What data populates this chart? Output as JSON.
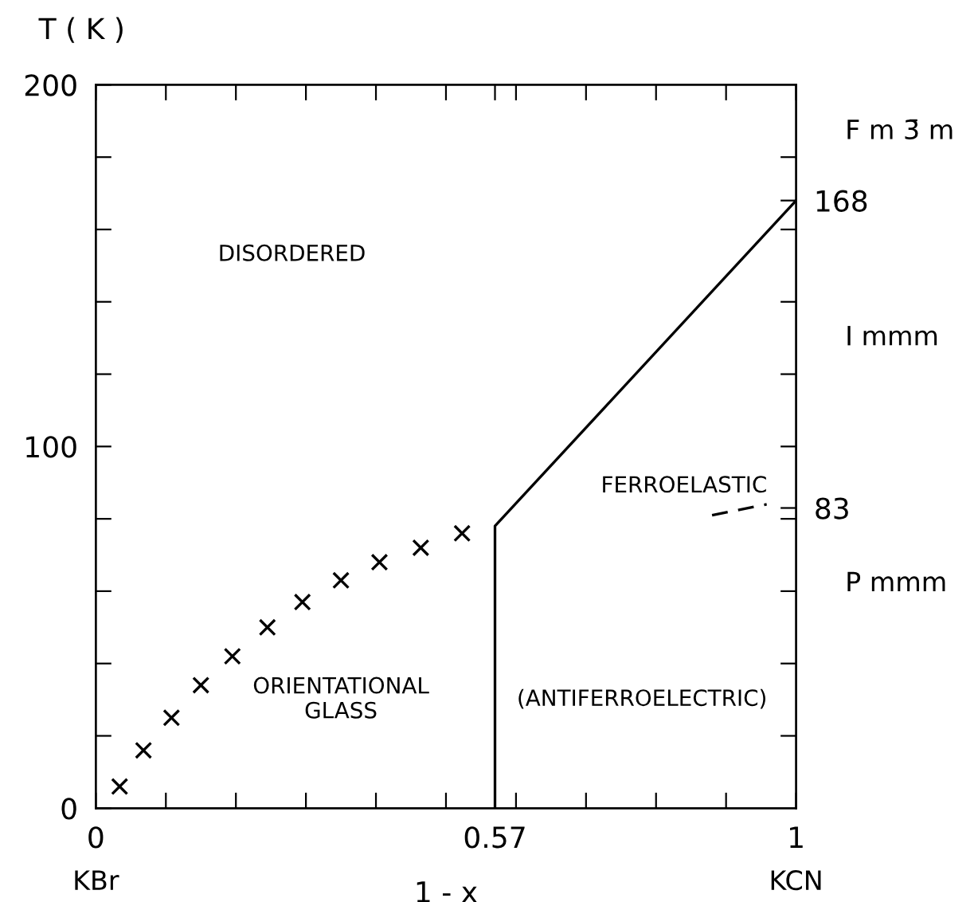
{
  "chart_data": {
    "type": "scatter",
    "xlabel": "1 - x",
    "ylabel": "T ( K )",
    "xlim": [
      0,
      1
    ],
    "ylim": [
      0,
      200
    ],
    "xticks": [
      0,
      {
        "value": 0.1,
        "label": null
      },
      {
        "value": 0.2,
        "label": null
      },
      {
        "value": 0.3,
        "label": null
      },
      {
        "value": 0.4,
        "label": null
      },
      {
        "value": 0.5,
        "label": null
      },
      0.57,
      {
        "value": 0.6,
        "label": null
      },
      {
        "value": 0.7,
        "label": null
      },
      {
        "value": 0.8,
        "label": null
      },
      {
        "value": 0.9,
        "label": null
      },
      1
    ],
    "yticks": [
      0,
      {
        "value": 20,
        "label": null
      },
      {
        "value": 40,
        "label": null
      },
      {
        "value": 60,
        "label": null
      },
      {
        "value": 80,
        "label": null
      },
      100,
      {
        "value": 120,
        "label": null
      },
      {
        "value": 140,
        "label": null
      },
      {
        "value": 160,
        "label": null
      },
      {
        "value": 180,
        "label": null
      },
      200
    ],
    "y2lim": [
      0,
      200
    ],
    "y2ticks": [
      {
        "value": 20,
        "label": null
      },
      {
        "value": 40,
        "label": null
      },
      {
        "value": 60,
        "label": null
      },
      {
        "value": 80,
        "label": null
      },
      83,
      {
        "value": 100,
        "label": null
      },
      {
        "value": 120,
        "label": null
      },
      {
        "value": 140,
        "label": null
      },
      {
        "value": 160,
        "label": null
      },
      168,
      {
        "value": 180,
        "label": null
      }
    ],
    "grid": false,
    "legend": false,
    "series": [
      {
        "color": "#000000",
        "marker": "cross",
        "x": [
          0.034,
          0.068,
          0.108,
          0.15,
          0.195,
          0.245,
          0.295,
          0.35,
          0.405,
          0.464,
          0.523
        ],
        "values": [
          6,
          16,
          25,
          34,
          42,
          50,
          57,
          63,
          68,
          72,
          76
        ]
      },
      {
        "type": "line",
        "color": "#000000",
        "marker": "none",
        "line_style": "solid",
        "x": [
          0.57,
          0.57,
          1
        ],
        "values": [
          0,
          78,
          168
        ]
      },
      {
        "type": "line",
        "color": "#000000",
        "marker": "none",
        "line_style": "dashed",
        "x": [
          0.88,
          0.958
        ],
        "values": [
          81,
          84
        ]
      }
    ],
    "annotations": [
      "DISORDERED",
      "FERROELASTIC",
      "ORIENTATIONAL\nGLASS",
      "(ANTIFERROELECTRIC)",
      "F m 3̄ m",
      "I mmm",
      "P mmm",
      "KBr",
      "KCN"
    ]
  }
}
